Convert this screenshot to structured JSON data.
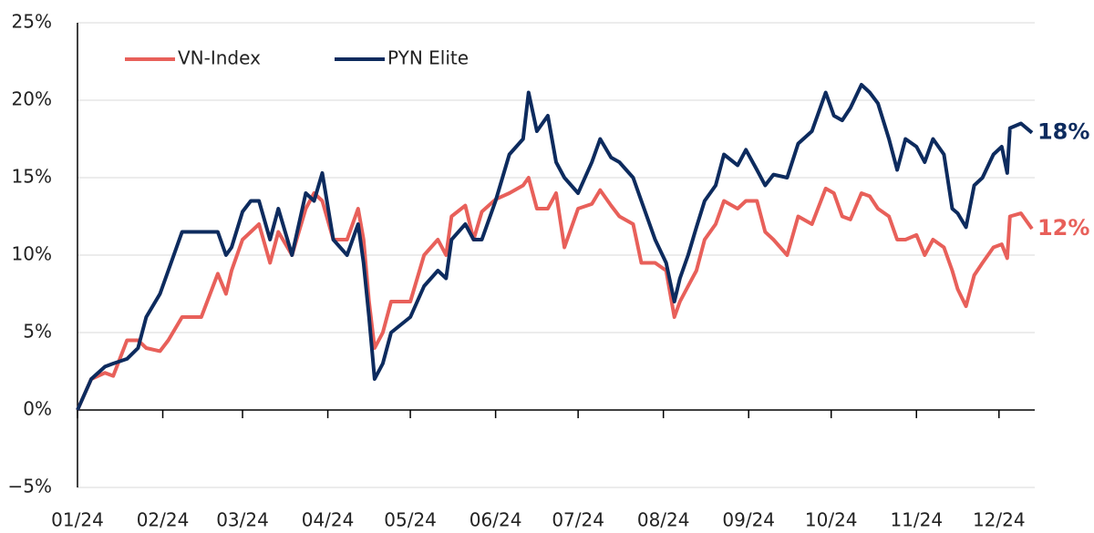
{
  "chart_data": {
    "type": "line",
    "x": [
      0,
      5,
      10,
      13,
      18,
      22,
      25,
      30,
      33,
      38,
      45,
      51,
      54,
      56,
      60,
      63,
      66,
      70,
      73,
      78,
      83,
      86,
      89,
      93,
      98,
      102,
      104,
      106,
      108,
      111,
      114,
      121,
      126,
      131,
      134,
      136,
      141,
      144,
      147,
      152,
      157,
      162,
      164,
      167,
      171,
      174,
      177,
      182,
      187,
      190,
      194,
      197,
      202,
      205,
      210,
      214,
      217,
      219,
      222,
      225,
      228,
      232,
      235,
      240,
      243,
      247,
      250,
      253,
      258,
      262,
      267,
      272,
      275,
      278,
      281,
      285,
      288,
      291,
      295,
      298,
      301,
      305,
      308,
      311,
      315,
      318,
      320,
      323,
      326,
      329,
      333,
      336,
      338,
      339,
      343,
      347
    ],
    "series": [
      {
        "name": "VN-Index",
        "color": "#e8605a",
        "end_label": "12%",
        "values": [
          0,
          2,
          2.4,
          2.2,
          4.5,
          4.5,
          4,
          3.8,
          4.5,
          6,
          6,
          8.8,
          7.5,
          9,
          11,
          11.5,
          12,
          9.5,
          11.5,
          10,
          13,
          14,
          13.5,
          11,
          11,
          13,
          11,
          7,
          4,
          5,
          7,
          7,
          10,
          11,
          10,
          12.5,
          13.2,
          11,
          12.8,
          13.6,
          14,
          14.5,
          15,
          13,
          13,
          14,
          10.5,
          13,
          13.3,
          14.2,
          13.2,
          12.5,
          12,
          9.5,
          9.5,
          9,
          6,
          7,
          8,
          9,
          11,
          12,
          13.5,
          13,
          13.5,
          13.5,
          11.5,
          11,
          10,
          12.5,
          12,
          14.3,
          14,
          12.5,
          12.3,
          14,
          13.8,
          13,
          12.5,
          11,
          11,
          11.3,
          10,
          11,
          10.5,
          9,
          7.8,
          6.7,
          8.7,
          9.5,
          10.5,
          10.7,
          9.8,
          12.5,
          12.7,
          11.7
        ]
      },
      {
        "name": "PYN Elite",
        "color": "#0d2b5e",
        "end_label": "18%",
        "values": [
          0,
          2,
          2.8,
          3,
          3.3,
          4,
          6,
          7.5,
          9,
          11.5,
          11.5,
          11.5,
          10,
          10.5,
          12.8,
          13.5,
          13.5,
          11,
          13,
          10,
          14,
          13.5,
          15.3,
          11,
          10,
          12,
          9.5,
          6,
          2,
          3,
          5,
          6,
          8,
          9,
          8.5,
          11,
          12,
          11,
          11,
          13.5,
          16.5,
          17.5,
          20.5,
          18,
          19,
          16,
          15,
          14,
          16,
          17.5,
          16.3,
          16,
          15,
          13.5,
          11,
          9.5,
          7,
          8.5,
          10,
          11.8,
          13.5,
          14.5,
          16.5,
          15.8,
          16.8,
          15.5,
          14.5,
          15.2,
          15,
          17.2,
          18,
          20.5,
          19,
          18.7,
          19.5,
          21,
          20.5,
          19.8,
          17.5,
          15.5,
          17.5,
          17,
          16,
          17.5,
          16.5,
          13,
          12.7,
          11.8,
          14.5,
          15,
          16.5,
          17,
          15.3,
          18.2,
          18.5,
          17.9
        ]
      }
    ],
    "xlim": [
      0,
      348
    ],
    "xticks": [
      {
        "value": 0,
        "label": "01/24"
      },
      {
        "value": 31,
        "label": "02/24"
      },
      {
        "value": 60,
        "label": "03/24"
      },
      {
        "value": 91,
        "label": "04/24"
      },
      {
        "value": 121,
        "label": "05/24"
      },
      {
        "value": 152,
        "label": "06/24"
      },
      {
        "value": 182,
        "label": "07/24"
      },
      {
        "value": 213,
        "label": "08/24"
      },
      {
        "value": 244,
        "label": "09/24"
      },
      {
        "value": 274,
        "label": "10/24"
      },
      {
        "value": 305,
        "label": "11/24"
      },
      {
        "value": 335,
        "label": "12/24"
      }
    ],
    "ylim": [
      -5,
      25
    ],
    "yticks": [
      {
        "value": -5,
        "label": "−5%"
      },
      {
        "value": 0,
        "label": "0%"
      },
      {
        "value": 5,
        "label": "5%"
      },
      {
        "value": 10,
        "label": "10%"
      },
      {
        "value": 15,
        "label": "15%"
      },
      {
        "value": 20,
        "label": "20%"
      },
      {
        "value": 25,
        "label": "25%"
      }
    ],
    "grid": true,
    "legend": "upper left"
  }
}
